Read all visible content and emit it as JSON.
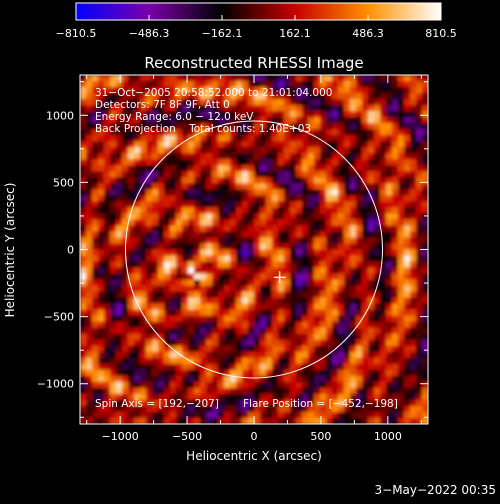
{
  "chart_data": {
    "type": "heatmap",
    "title": "Reconstructed RHESSI Image",
    "xlabel": "Heliocentric X (arcsec)",
    "ylabel": "Heliocentric Y (arcsec)",
    "xlim": [
      -1300,
      1300
    ],
    "ylim": [
      -1300,
      1300
    ],
    "xticks": [
      -1000,
      -500,
      0,
      500,
      1000
    ],
    "yticks": [
      -1000,
      -500,
      0,
      500,
      1000
    ],
    "xtick_labels": [
      "−1000",
      "−500",
      "0",
      "500",
      "1000"
    ],
    "ytick_labels": [
      "−1000",
      "−500",
      "0",
      "500",
      "1000"
    ],
    "colorbar": {
      "range": [
        -810.5,
        810.5
      ],
      "ticks": [
        -810.5,
        -486.3,
        -162.1,
        162.1,
        486.3,
        810.5
      ],
      "tick_labels": [
        "−810.5",
        "−486.3",
        "−162.1",
        "162.1",
        "486.3",
        "810.5"
      ],
      "colormap": [
        "#0000ff",
        "#7a00a8",
        "#000000",
        "#c80000",
        "#ff9000",
        "#ffffff"
      ]
    },
    "solar_disk": {
      "center": [
        0,
        0
      ],
      "radius_arcsec": 960
    },
    "flare_position": [
      -452,
      -198
    ],
    "spin_axis": [
      192,
      -207
    ],
    "map_center_marker": [
      192,
      -207
    ],
    "annotations": [
      "31−Oct−2005 20:58:52.000 to 21:01:04.000",
      "Detectors: 7F 8F 9F, Att 0",
      "Energy Range: 6.0 − 12.0 keV",
      "Back Projection    Total counts: 1.40E+03"
    ],
    "spin_axis_text": "Spin Axis = [192,−207]",
    "flare_position_text": "Flare Position = [−452,−198]"
  },
  "footer": {
    "date": "3−May−2022 00:35"
  }
}
